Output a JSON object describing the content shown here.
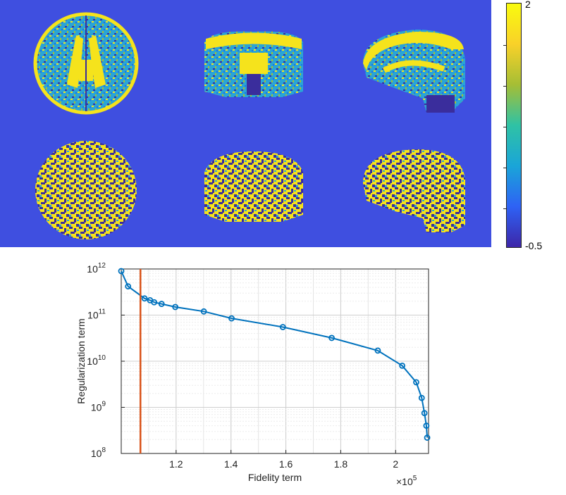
{
  "colorbar": {
    "max_label": "2",
    "min_label": "-0.5",
    "colors": [
      "#3d26a8",
      "#2e62f5",
      "#1aa5d8",
      "#2fc2a5",
      "#a5be35",
      "#f9d129",
      "#f9fb0e"
    ]
  },
  "brain_maps": {
    "background_color": "#3f4fe0",
    "high_color": "#f5e31c",
    "low_color": "#3a2d9c",
    "mid_color": "#2aa4d6"
  },
  "chart_data": {
    "type": "line",
    "xlabel": "Fidelity term",
    "ylabel": "Regularization term",
    "x_multiplier_label": "×10",
    "x_multiplier_exponent": "5",
    "x_scale": "linear",
    "y_scale": "log",
    "xlim": [
      1.0,
      2.05
    ],
    "ylim": [
      100000000.0,
      1000000000000.0
    ],
    "x_tick_labels": [
      "1.2",
      "1.4",
      "1.6",
      "1.8",
      "2"
    ],
    "x_ticks": [
      1.2,
      1.4,
      1.6,
      1.8,
      2.0
    ],
    "y_tick_labels": [
      {
        "base": "10",
        "exp": "8"
      },
      {
        "base": "10",
        "exp": "9"
      },
      {
        "base": "10",
        "exp": "10"
      },
      {
        "base": "10",
        "exp": "11"
      },
      {
        "base": "10",
        "exp": "12"
      }
    ],
    "y_ticks": [
      100000000.0,
      1000000000.0,
      10000000000.0,
      100000000000.0,
      1000000000000.0
    ],
    "grid": true,
    "series": [
      {
        "color": "#0072bd",
        "marker": "circle",
        "x": [
          1.0,
          1.025,
          1.085,
          1.105,
          1.12,
          1.147,
          1.197,
          1.301,
          1.402,
          1.589,
          1.767,
          1.935,
          2.024,
          2.075,
          2.095,
          2.105,
          2.112,
          2.115
        ],
        "y": [
          900000000000.0,
          420000000000.0,
          230000000000.0,
          210000000000.0,
          190000000000.0,
          175000000000.0,
          150000000000.0,
          120000000000.0,
          85000000000.0,
          55000000000.0,
          32000000000.0,
          17000000000.0,
          8000000000.0,
          3500000000.0,
          1600000000.0,
          750000000.0,
          400000000.0,
          220000000.0
        ]
      }
    ],
    "reference_line": {
      "x": 1.07,
      "color": "#d95319"
    }
  }
}
